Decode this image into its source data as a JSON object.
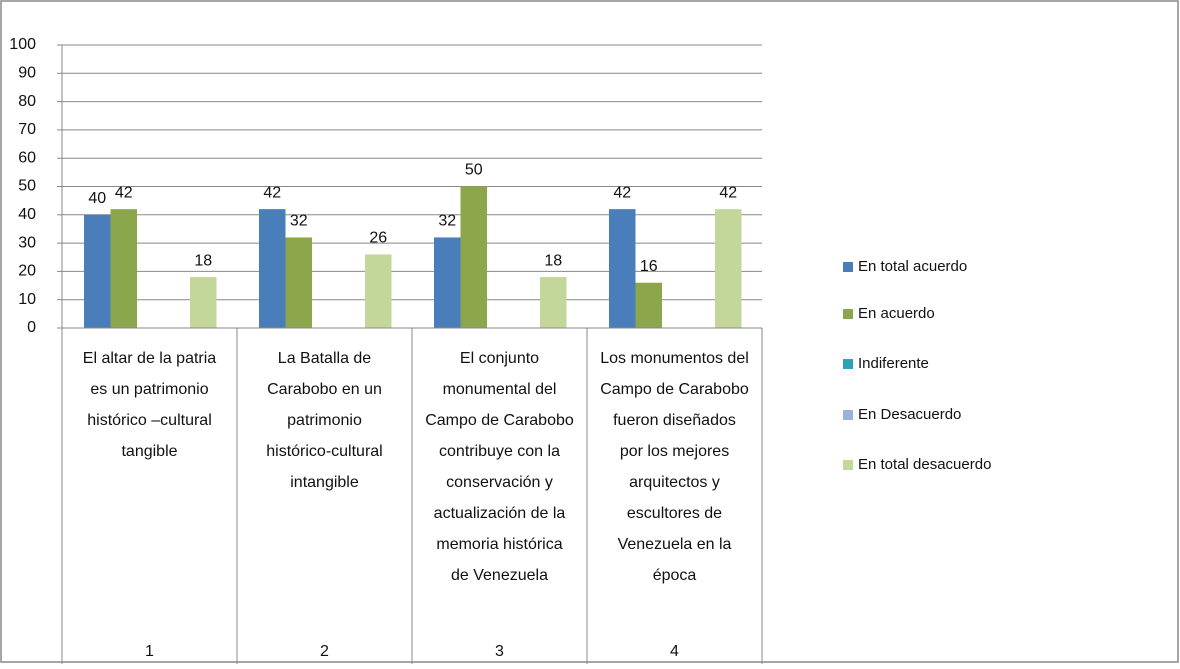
{
  "chart_data": {
    "type": "bar",
    "categories": [
      "1",
      "2",
      "3",
      "4"
    ],
    "category_descriptions": [
      [
        "El altar de la patria",
        "es un patrimonio",
        "histórico –cultural",
        "tangible"
      ],
      [
        "La Batalla de",
        "Carabobo en un",
        "patrimonio",
        "histórico-cultural",
        "intangible"
      ],
      [
        "El conjunto",
        "monumental del",
        "Campo de Carabobo",
        "contribuye con la",
        "conservación y",
        "actualización de la",
        "memoria histórica",
        "de Venezuela"
      ],
      [
        "Los monumentos del",
        "Campo de Carabobo",
        "fueron diseñados",
        "por los mejores",
        "arquitectos y",
        "escultores de",
        "Venezuela en la",
        "época"
      ]
    ],
    "series": [
      {
        "name": "En total acuerdo",
        "color": "#4a7ebb",
        "values": [
          40,
          42,
          32,
          42
        ]
      },
      {
        "name": "En acuerdo",
        "color": "#8ca64c",
        "values": [
          42,
          32,
          50,
          16
        ]
      },
      {
        "name": "Indiferente",
        "color": "#2ea3b8",
        "values": [
          null,
          null,
          null,
          null
        ]
      },
      {
        "name": "En Desacuerdo",
        "color": "#98b4d8",
        "values": [
          null,
          null,
          null,
          null
        ]
      },
      {
        "name": "En total desacuerdo",
        "color": "#c3d79b",
        "values": [
          18,
          26,
          18,
          42
        ]
      }
    ],
    "ylim": [
      0,
      100
    ],
    "yticks": [
      0,
      10,
      20,
      30,
      40,
      50,
      60,
      70,
      80,
      90,
      100
    ],
    "grid": true,
    "legend": "right"
  }
}
